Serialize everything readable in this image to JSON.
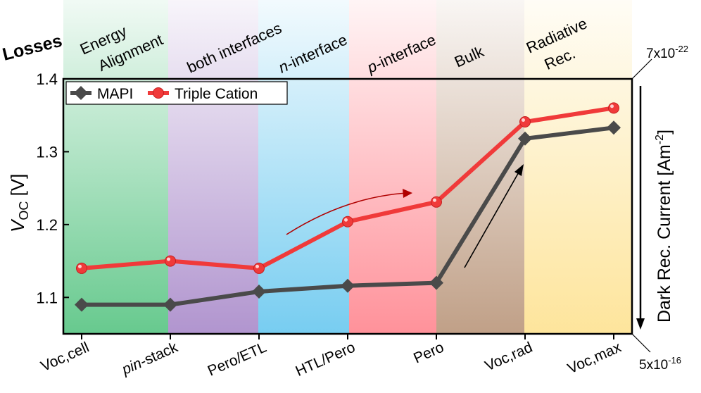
{
  "chart_data": {
    "type": "line",
    "losses_label": "Losses",
    "region_labels": [
      {
        "lines": [
          "Energy",
          "Alignment"
        ],
        "color": "#4cc07a"
      },
      {
        "lines": [
          "both interfaces"
        ],
        "color": "#a382c6"
      },
      {
        "lines": [
          "n-interface"
        ],
        "color": "#5fc4ee"
      },
      {
        "lines": [
          "p-interface"
        ],
        "color": "#ff7e88"
      },
      {
        "lines": [
          "Bulk"
        ],
        "color": "#b58f72"
      },
      {
        "lines": [
          "Radiative",
          "Rec."
        ],
        "color": "#fde08a"
      }
    ],
    "categories": [
      "Voc,cell",
      "pin-stack",
      "Pero/ETL",
      "HTL/Pero",
      "Pero",
      "Voc,rad",
      "Voc,max"
    ],
    "series": [
      {
        "name": "MAPI",
        "color": "#4a4a4a",
        "marker": "diamond",
        "values": [
          1.09,
          1.09,
          1.108,
          1.116,
          1.12,
          1.318,
          1.333
        ]
      },
      {
        "name": "Triple Cation",
        "color": "#f03a3a",
        "marker": "circle",
        "values": [
          1.14,
          1.15,
          1.14,
          1.204,
          1.231,
          1.341,
          1.36
        ]
      }
    ],
    "ylabel_main": "V",
    "ylabel_sub": "OC",
    "ylabel_unit": " [V]",
    "ylim": [
      1.05,
      1.4
    ],
    "yticks": [
      "1.1",
      "1.2",
      "1.3",
      "1.4"
    ],
    "right_axis_label": "Dark Rec. Current [Am",
    "right_axis_exp": "-2",
    "right_axis_close": "]",
    "right_top_value": "7x10",
    "right_top_exp": "-22",
    "right_bottom_value": "5x10",
    "right_bottom_exp": "-16",
    "legend_placement": "top-left",
    "grid": false
  }
}
